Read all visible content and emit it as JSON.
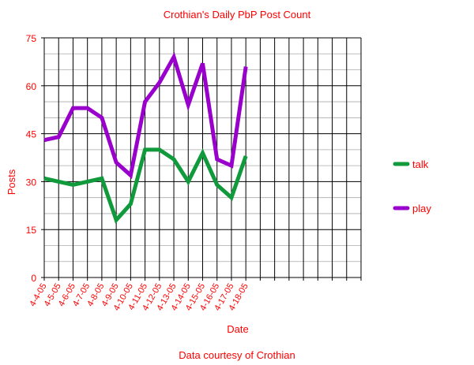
{
  "chart_data": {
    "type": "line",
    "title": "Crothian's Daily PbP Post Count",
    "xlabel": "Date",
    "ylabel": "Posts",
    "footer": "Data courtesy of Crothian",
    "categories": [
      "4-4-05",
      "4-5-05",
      "4-6-05",
      "4-7-05",
      "4-8-05",
      "4-9-05",
      "4-10-05",
      "4-11-05",
      "4-12-05",
      "4-13-05",
      "4-14-05",
      "4-15-05",
      "4-16-05",
      "4-17-05",
      "4-18-05"
    ],
    "ylim": [
      0,
      75
    ],
    "yticks": [
      "0",
      "15",
      "30",
      "45",
      "60",
      "75"
    ],
    "extra_empty_slots": 8,
    "grid": true,
    "legend_position": "right",
    "series": [
      {
        "name": "talk",
        "color": "#109a3c",
        "values": [
          31,
          30,
          29,
          30,
          31,
          18,
          23,
          40,
          40,
          37,
          30,
          39,
          29,
          25,
          38
        ]
      },
      {
        "name": "play",
        "color": "#9900cc",
        "values": [
          43,
          44,
          53,
          53,
          50,
          36,
          32,
          55,
          61,
          69,
          54,
          67,
          37,
          35,
          66
        ]
      }
    ]
  }
}
